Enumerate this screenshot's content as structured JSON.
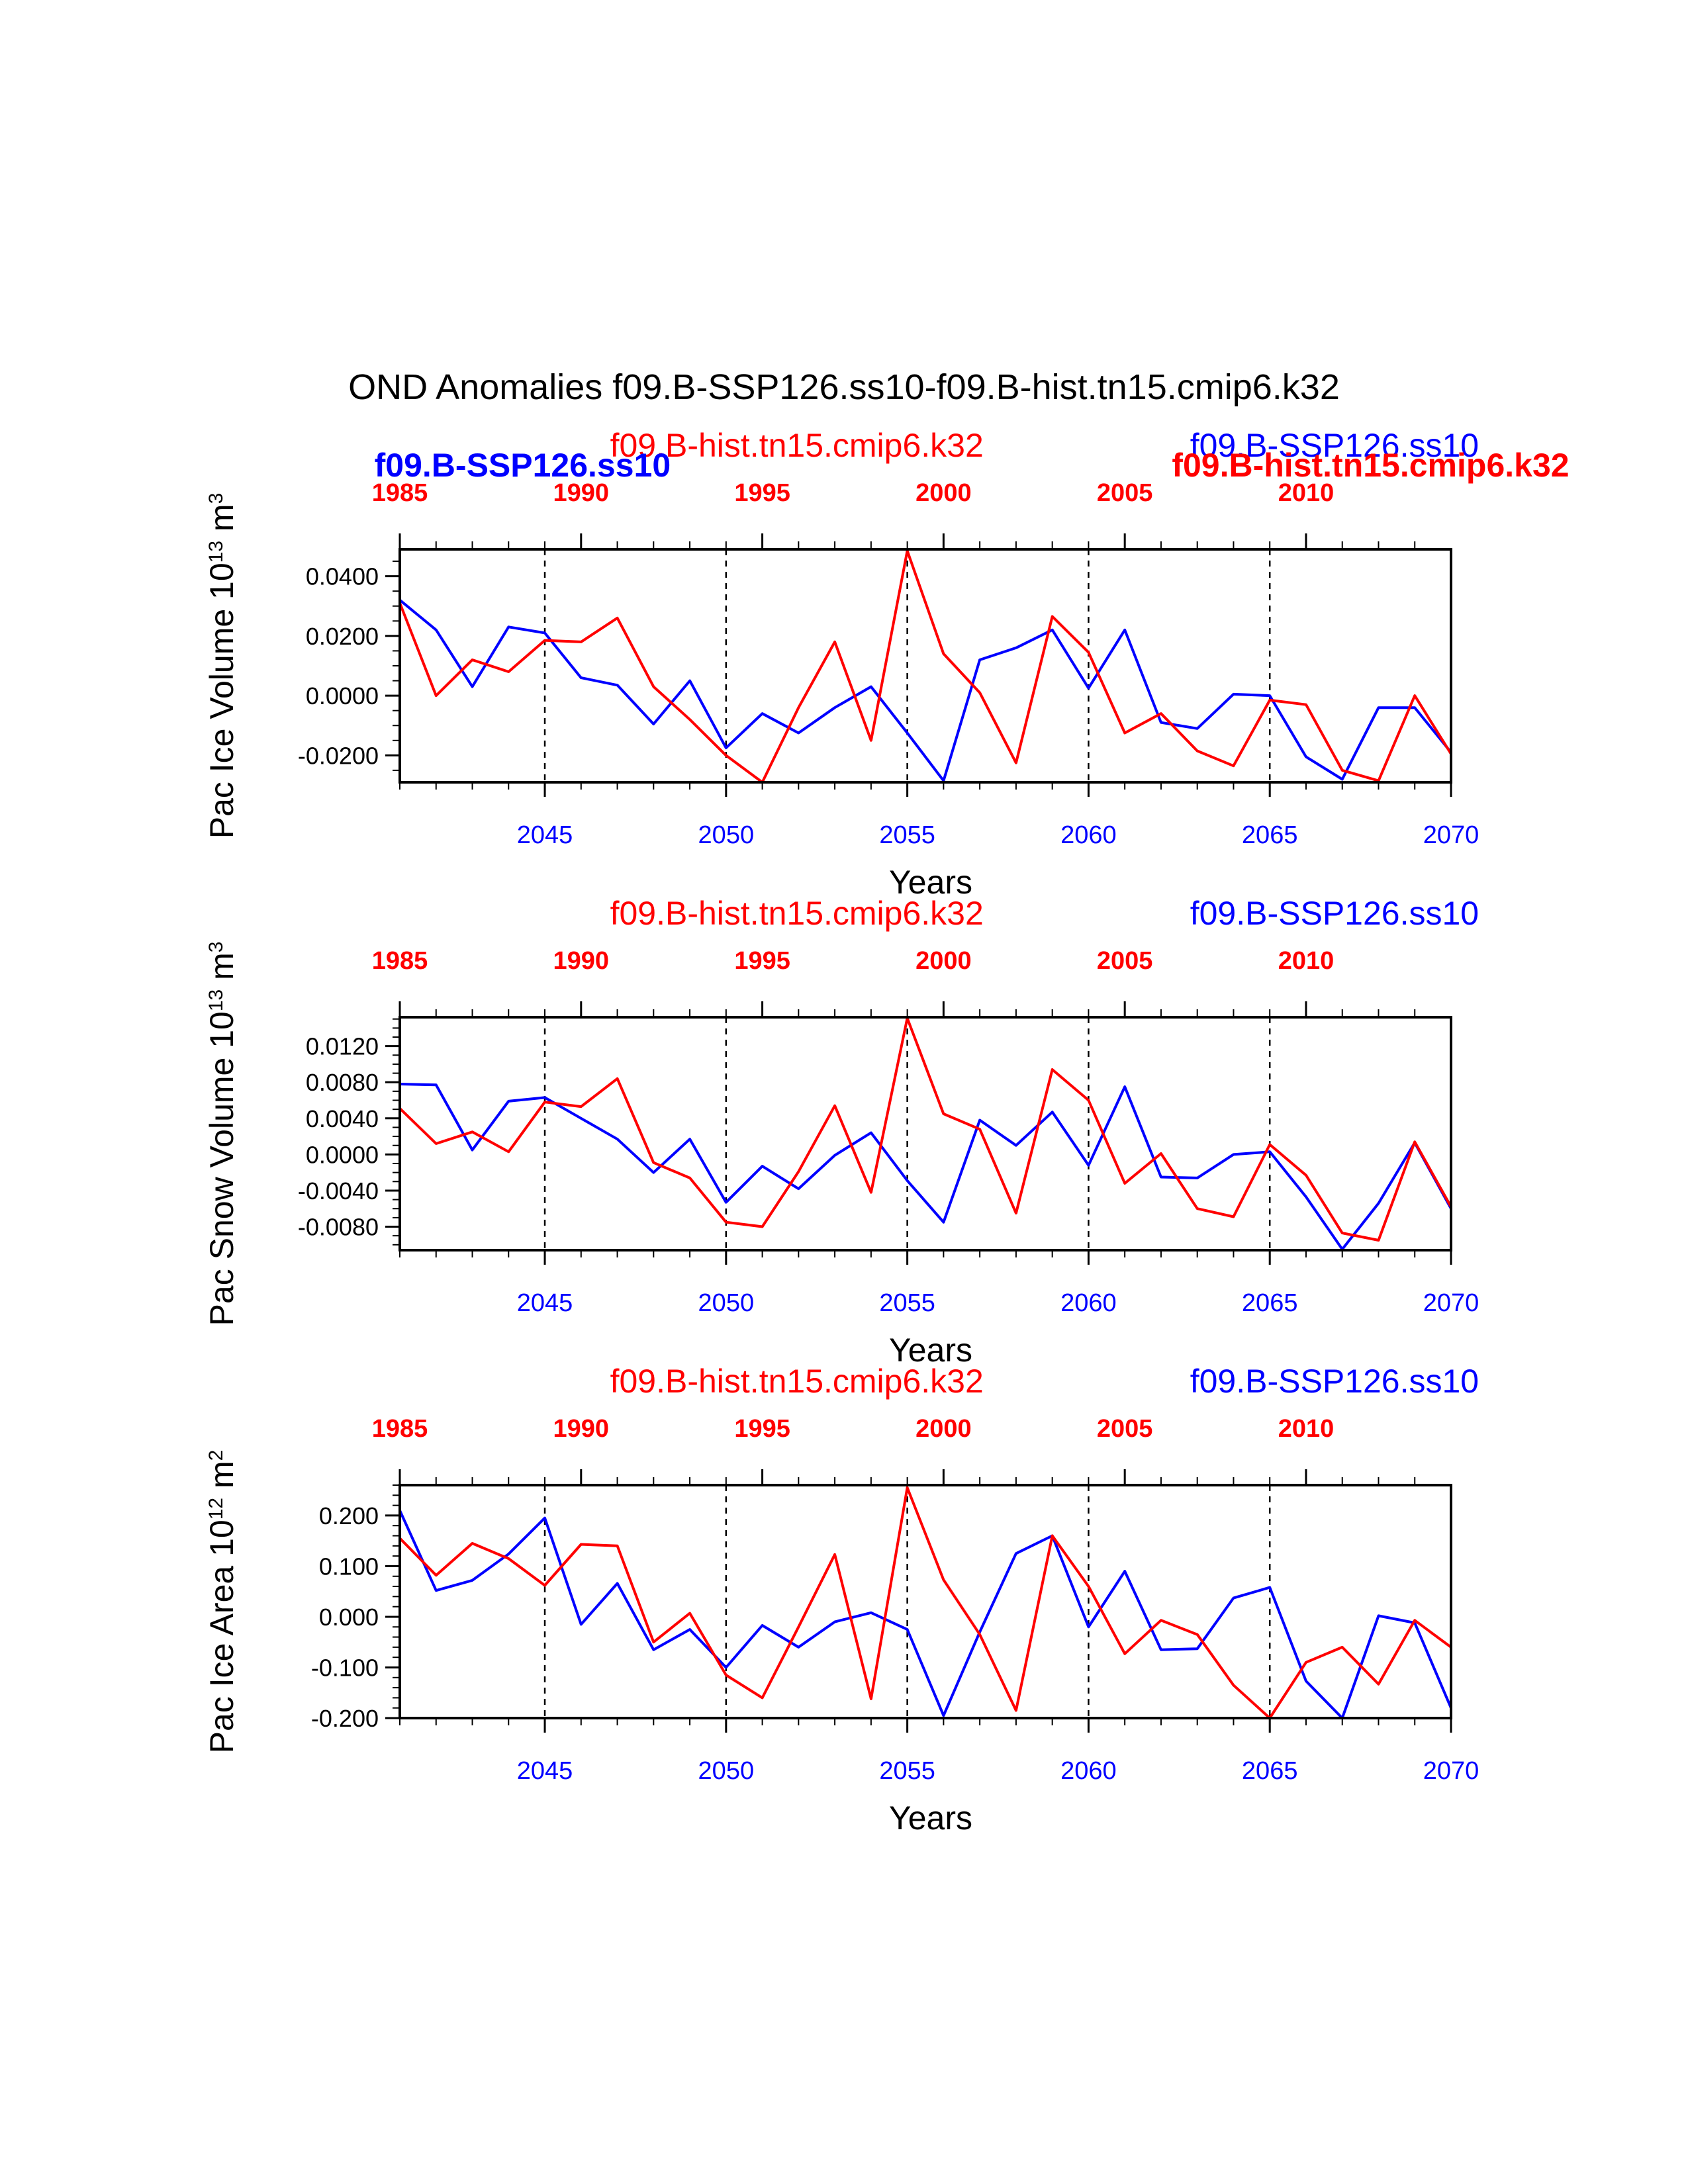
{
  "figure": {
    "title": "OND Anomalies f09.B-SSP126.ss10-f09.B-hist.tn15.cmip6.k32"
  },
  "colors": {
    "hist": "#ff0000",
    "ssp": "#0000ff",
    "axis": "#000000"
  },
  "chart_data": [
    {
      "type": "line",
      "ylabel": "Pac Ice Volume 10",
      "ylabel_exp": "13",
      "ylabel_unit": " m",
      "ylabel_unit_exp": "3",
      "xlabel": "Years",
      "ylim": [
        -0.029,
        0.049
      ],
      "yticks": [
        -0.02,
        0.0,
        0.02,
        0.04
      ],
      "ytick_labels": [
        "-0.0200",
        "0.0000",
        "0.0200",
        "0.0400"
      ],
      "minor_step": 0.005,
      "xlim": [
        2041,
        2070
      ],
      "xticks": [
        2045,
        2050,
        2055,
        2060,
        2065,
        2070
      ],
      "xtick_labels": [
        "2045",
        "2050",
        "2055",
        "2060",
        "2065",
        "2070"
      ],
      "top_xticks": [
        1985,
        1990,
        1995,
        2000,
        2005,
        2010
      ],
      "top_xtick_labels": [
        "1985",
        "1990",
        "1995",
        "2000",
        "2005",
        "2010"
      ],
      "vlines": [
        2045,
        2050,
        2055,
        2060,
        2065
      ],
      "labels": [
        {
          "text": "f09.B-hist.tn15.cmip6.k32",
          "color": "hist",
          "bold": false,
          "x": 2046.8,
          "row": "upper"
        },
        {
          "text": "f09.B-SSP126.ss10",
          "color": "ssp",
          "bold": true,
          "x": 2040.3,
          "row": "lower"
        },
        {
          "text": "f09.B-SSP126.ss10",
          "color": "ssp",
          "bold": false,
          "x": 2062.8,
          "row": "upper"
        },
        {
          "text": "f09.B-hist.tn15.cmip6.k32",
          "color": "hist",
          "bold": true,
          "x": 2062.3,
          "row": "lower"
        }
      ],
      "series": [
        {
          "name": "f09.B-SSP126.ss10",
          "color": "ssp",
          "x": [
            2041,
            2042,
            2043,
            2044,
            2045,
            2046,
            2047,
            2048,
            2049,
            2050,
            2051,
            2052,
            2053,
            2054,
            2055,
            2056,
            2057,
            2058,
            2059,
            2060,
            2061,
            2062,
            2063,
            2064,
            2065,
            2066,
            2067,
            2068,
            2069,
            2070
          ],
          "values": [
            0.032,
            0.022,
            0.003,
            0.023,
            0.021,
            0.006,
            0.0035,
            -0.0095,
            0.005,
            -0.0175,
            -0.006,
            -0.0125,
            -0.004,
            0.003,
            -0.0125,
            -0.0285,
            0.012,
            0.016,
            0.022,
            0.0025,
            0.022,
            -0.009,
            -0.011,
            0.0005,
            0.0,
            -0.0205,
            -0.028,
            -0.004,
            -0.004,
            -0.019
          ]
        },
        {
          "name": "f09.B-hist.tn15.cmip6.k32",
          "color": "hist",
          "x": [
            2041,
            2042,
            2043,
            2044,
            2045,
            2046,
            2047,
            2048,
            2049,
            2050,
            2051,
            2052,
            2053,
            2054,
            2055,
            2056,
            2057,
            2058,
            2059,
            2060,
            2061,
            2062,
            2063,
            2064,
            2065,
            2066,
            2067,
            2068,
            2069,
            2070
          ],
          "values": [
            0.031,
            0.0,
            0.012,
            0.008,
            0.0185,
            0.018,
            0.026,
            0.003,
            -0.008,
            -0.02,
            -0.029,
            -0.004,
            0.018,
            -0.015,
            0.0485,
            0.014,
            0.001,
            -0.0225,
            0.0265,
            0.0145,
            -0.0125,
            -0.006,
            -0.0185,
            -0.0235,
            -0.0015,
            -0.003,
            -0.025,
            -0.0285,
            0.0,
            -0.0195
          ]
        }
      ]
    },
    {
      "type": "line",
      "ylabel": "Pac Snow Volume 10",
      "ylabel_exp": "13",
      "ylabel_unit": " m",
      "ylabel_unit_exp": "3",
      "xlabel": "Years",
      "ylim": [
        -0.0106,
        0.0152
      ],
      "yticks": [
        -0.008,
        -0.004,
        0.0,
        0.004,
        0.008,
        0.012
      ],
      "ytick_labels": [
        "-0.0080",
        "-0.0040",
        "0.0000",
        "0.0040",
        "0.0080",
        "0.0120"
      ],
      "minor_step": 0.001,
      "xlim": [
        2041,
        2070
      ],
      "xticks": [
        2045,
        2050,
        2055,
        2060,
        2065,
        2070
      ],
      "xtick_labels": [
        "2045",
        "2050",
        "2055",
        "2060",
        "2065",
        "2070"
      ],
      "top_xticks": [
        1985,
        1990,
        1995,
        2000,
        2005,
        2010
      ],
      "top_xtick_labels": [
        "1985",
        "1990",
        "1995",
        "2000",
        "2005",
        "2010"
      ],
      "vlines": [
        2045,
        2050,
        2055,
        2060,
        2065
      ],
      "labels": [
        {
          "text": "f09.B-hist.tn15.cmip6.k32",
          "color": "hist",
          "bold": false,
          "x": 2046.8,
          "row": "upper"
        },
        {
          "text": "f09.B-SSP126.ss10",
          "color": "ssp",
          "bold": false,
          "x": 2062.8,
          "row": "upper"
        }
      ],
      "series": [
        {
          "name": "f09.B-SSP126.ss10",
          "color": "ssp",
          "x": [
            2041,
            2042,
            2043,
            2044,
            2045,
            2046,
            2047,
            2048,
            2049,
            2050,
            2051,
            2052,
            2053,
            2054,
            2055,
            2056,
            2057,
            2058,
            2059,
            2060,
            2061,
            2062,
            2063,
            2064,
            2065,
            2066,
            2067,
            2068,
            2069,
            2070
          ],
          "values": [
            0.0078,
            0.0077,
            0.0005,
            0.0059,
            0.0063,
            0.004,
            0.0017,
            -0.002,
            0.0017,
            -0.0053,
            -0.0013,
            -0.0038,
            -0.0001,
            0.0024,
            -0.0029,
            -0.0075,
            0.0038,
            0.001,
            0.0047,
            -0.0012,
            0.0075,
            -0.0025,
            -0.0026,
            0.0,
            0.0003,
            -0.0047,
            -0.0105,
            -0.0054,
            0.0013,
            -0.006
          ]
        },
        {
          "name": "f09.B-hist.tn15.cmip6.k32",
          "color": "hist",
          "x": [
            2041,
            2042,
            2043,
            2044,
            2045,
            2046,
            2047,
            2048,
            2049,
            2050,
            2051,
            2052,
            2053,
            2054,
            2055,
            2056,
            2057,
            2058,
            2059,
            2060,
            2061,
            2062,
            2063,
            2064,
            2065,
            2066,
            2067,
            2068,
            2069,
            2070
          ],
          "values": [
            0.0051,
            0.0012,
            0.0025,
            0.0003,
            0.0058,
            0.0053,
            0.0084,
            -0.0009,
            -0.0026,
            -0.0075,
            -0.008,
            -0.0019,
            0.0054,
            -0.0042,
            0.0151,
            0.0045,
            0.0028,
            -0.0065,
            0.0094,
            0.006,
            -0.0032,
            0.0001,
            -0.006,
            -0.0069,
            0.0011,
            -0.0023,
            -0.0087,
            -0.0095,
            0.0014,
            -0.0058
          ]
        }
      ]
    },
    {
      "type": "line",
      "ylabel": "Pac Ice Area 10",
      "ylabel_exp": "12",
      "ylabel_unit": " m",
      "ylabel_unit_exp": "2",
      "xlabel": "Years",
      "ylim": [
        -0.2,
        0.26
      ],
      "yticks": [
        -0.2,
        -0.1,
        0.0,
        0.1,
        0.2
      ],
      "ytick_labels": [
        "-0.200",
        "-0.100",
        "0.000",
        "0.100",
        "0.200"
      ],
      "minor_step": 0.02,
      "xlim": [
        2041,
        2070
      ],
      "xticks": [
        2045,
        2050,
        2055,
        2060,
        2065,
        2070
      ],
      "xtick_labels": [
        "2045",
        "2050",
        "2055",
        "2060",
        "2065",
        "2070"
      ],
      "top_xticks": [
        1985,
        1990,
        1995,
        2000,
        2005,
        2010
      ],
      "top_xtick_labels": [
        "1985",
        "1990",
        "1995",
        "2000",
        "2005",
        "2010"
      ],
      "vlines": [
        2045,
        2050,
        2055,
        2060,
        2065
      ],
      "labels": [
        {
          "text": "f09.B-hist.tn15.cmip6.k32",
          "color": "hist",
          "bold": false,
          "x": 2046.8,
          "row": "upper"
        },
        {
          "text": "f09.B-SSP126.ss10",
          "color": "ssp",
          "bold": false,
          "x": 2062.8,
          "row": "upper"
        }
      ],
      "series": [
        {
          "name": "f09.B-SSP126.ss10",
          "color": "ssp",
          "x": [
            2041,
            2042,
            2043,
            2044,
            2045,
            2046,
            2047,
            2048,
            2049,
            2050,
            2051,
            2052,
            2053,
            2054,
            2055,
            2056,
            2057,
            2058,
            2059,
            2060,
            2061,
            2062,
            2063,
            2064,
            2065,
            2066,
            2067,
            2068,
            2069,
            2070
          ],
          "values": [
            0.21,
            0.052,
            0.072,
            0.124,
            0.195,
            -0.015,
            0.066,
            -0.065,
            -0.025,
            -0.1,
            -0.017,
            -0.06,
            -0.01,
            0.008,
            -0.025,
            -0.195,
            -0.03,
            0.125,
            0.16,
            -0.02,
            0.09,
            -0.065,
            -0.063,
            0.037,
            0.058,
            -0.127,
            -0.2,
            0.002,
            -0.012,
            -0.18
          ]
        },
        {
          "name": "f09.B-hist.tn15.cmip6.k32",
          "color": "hist",
          "x": [
            2041,
            2042,
            2043,
            2044,
            2045,
            2046,
            2047,
            2048,
            2049,
            2050,
            2051,
            2052,
            2053,
            2054,
            2055,
            2056,
            2057,
            2058,
            2059,
            2060,
            2061,
            2062,
            2063,
            2064,
            2065,
            2066,
            2067,
            2068,
            2069,
            2070
          ],
          "values": [
            0.155,
            0.082,
            0.145,
            0.115,
            0.062,
            0.143,
            0.14,
            -0.05,
            0.007,
            -0.115,
            -0.16,
            -0.02,
            0.123,
            -0.162,
            0.255,
            0.073,
            -0.035,
            -0.185,
            0.16,
            0.06,
            -0.073,
            -0.007,
            -0.035,
            -0.135,
            -0.2,
            -0.09,
            -0.06,
            -0.133,
            -0.007,
            -0.06
          ]
        }
      ]
    }
  ]
}
